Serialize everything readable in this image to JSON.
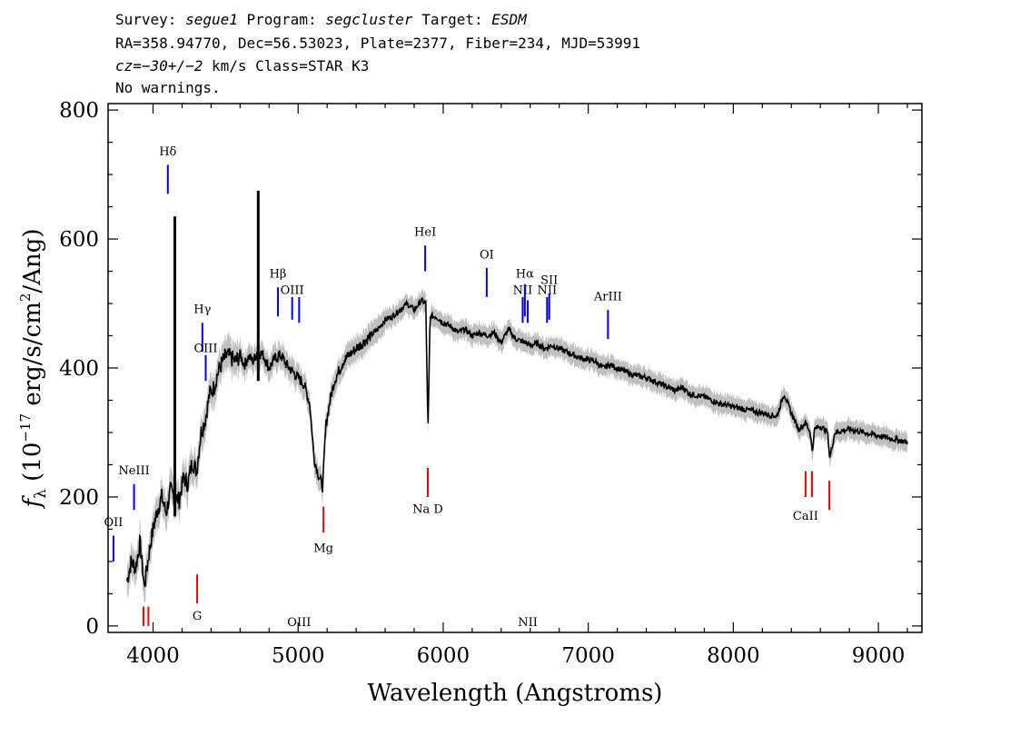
{
  "header": {
    "survey_key": "Survey:",
    "survey": "segue1",
    "program_key": "Program:",
    "program": "segcluster",
    "target_key": "Target:",
    "target": "ESDM",
    "line2": "RA=358.94770, Dec=56.53023, Plate=2377, Fiber=234, MJD=53991",
    "cz_key": "cz=",
    "cz_value": "−30+/−2",
    "cz_rest": " km/s Class=STAR K3",
    "line4": "No warnings."
  },
  "chart_data": {
    "type": "line",
    "title": "",
    "xlabel": "Wavelength (Angstroms)",
    "ylabel": "f_λ (10^-17 erg/s/cm^2/Ang)",
    "ylabel_parts": {
      "f": "f",
      "lambda": "λ",
      "pre": " (10",
      "exp": "−17",
      "mid": " erg/s/cm",
      "exp2": "2",
      "post": "/Ang)"
    },
    "xlim": [
      3690,
      9300
    ],
    "ylim": [
      -10,
      810
    ],
    "x_ticks": [
      4000,
      5000,
      6000,
      7000,
      8000,
      9000
    ],
    "x_tick_labels": [
      "4000",
      "5000",
      "6000",
      "7000",
      "8000",
      "9000"
    ],
    "y_ticks": [
      0,
      200,
      400,
      600,
      800
    ],
    "y_tick_labels": [
      "0",
      "200",
      "400",
      "600",
      "800"
    ],
    "series": [
      {
        "name": "flux",
        "color": "#000000",
        "x": [
          3820,
          3850,
          3880,
          3910,
          3940,
          3970,
          4000,
          4030,
          4060,
          4090,
          4120,
          4150,
          4180,
          4210,
          4240,
          4270,
          4300,
          4330,
          4360,
          4390,
          4420,
          4450,
          4480,
          4510,
          4540,
          4570,
          4600,
          4630,
          4660,
          4690,
          4720,
          4760,
          4800,
          4840,
          4880,
          4920,
          4960,
          5000,
          5040,
          5080,
          5110,
          5140,
          5170,
          5190,
          5220,
          5250,
          5280,
          5310,
          5350,
          5400,
          5450,
          5500,
          5550,
          5600,
          5650,
          5700,
          5750,
          5800,
          5850,
          5880,
          5895,
          5910,
          5950,
          6000,
          6050,
          6100,
          6150,
          6200,
          6250,
          6300,
          6350,
          6400,
          6450,
          6500,
          6560,
          6600,
          6650,
          6700,
          6750,
          6800,
          6850,
          6900,
          6950,
          7000,
          7050,
          7100,
          7150,
          7200,
          7250,
          7300,
          7400,
          7500,
          7600,
          7650,
          7700,
          7800,
          7900,
          8000,
          8100,
          8200,
          8300,
          8350,
          8400,
          8450,
          8500,
          8530,
          8545,
          8560,
          8600,
          8650,
          8665,
          8700,
          8800,
          8900,
          9000,
          9100,
          9200
        ],
        "values": [
          70,
          100,
          90,
          130,
          60,
          110,
          150,
          180,
          200,
          175,
          210,
          200,
          195,
          230,
          220,
          255,
          240,
          300,
          320,
          360,
          370,
          395,
          410,
          420,
          415,
          410,
          420,
          405,
          418,
          410,
          425,
          420,
          400,
          415,
          420,
          405,
          395,
          385,
          375,
          345,
          260,
          235,
          215,
          310,
          350,
          380,
          395,
          410,
          420,
          430,
          440,
          450,
          460,
          475,
          480,
          490,
          500,
          490,
          505,
          500,
          300,
          480,
          480,
          470,
          465,
          455,
          460,
          450,
          455,
          450,
          455,
          440,
          460,
          445,
          440,
          435,
          438,
          430,
          435,
          430,
          425,
          420,
          415,
          413,
          410,
          400,
          405,
          400,
          395,
          390,
          385,
          375,
          365,
          370,
          360,
          355,
          345,
          340,
          335,
          330,
          325,
          360,
          330,
          305,
          315,
          300,
          270,
          305,
          310,
          300,
          260,
          300,
          305,
          300,
          295,
          290,
          285
        ]
      },
      {
        "name": "error",
        "color": "#c0c0c0",
        "x": [],
        "values": []
      }
    ],
    "spikes": [
      {
        "x": 4150,
        "y0": 170,
        "y1": 635
      },
      {
        "x": 4725,
        "y0": 380,
        "y1": 675
      }
    ],
    "emission_lines": [
      {
        "label": "OII",
        "x": 3727,
        "y0": 100,
        "y1": 140,
        "label_y": 155
      },
      {
        "label": "NeIII",
        "x": 3869,
        "y0": 180,
        "y1": 220,
        "label_y": 235
      },
      {
        "label": "Hδ",
        "x": 4102,
        "y0": 670,
        "y1": 715,
        "label_y": 730
      },
      {
        "label": "Hγ",
        "x": 4340,
        "y0": 425,
        "y1": 470,
        "label_y": 485
      },
      {
        "label": "OIII",
        "x": 4363,
        "y0": 380,
        "y1": 420,
        "label_y": 425
      },
      {
        "label": "Hβ",
        "x": 4861,
        "y0": 480,
        "y1": 525,
        "label_y": 540
      },
      {
        "label": "OIII",
        "x": 4959,
        "y0": 475,
        "y1": 510,
        "label_y": 515
      },
      {
        "label": "OIII",
        "x": 5007,
        "y0": 470,
        "y1": 510,
        "label_y": 0
      },
      {
        "label": "HeI",
        "x": 5876,
        "y0": 550,
        "y1": 590,
        "label_y": 605
      },
      {
        "label": "OI",
        "x": 6300,
        "y0": 510,
        "y1": 555,
        "label_y": 570
      },
      {
        "label": "NII",
        "x": 6548,
        "y0": 470,
        "y1": 510,
        "label_y": 515
      },
      {
        "label": "Hα",
        "x": 6563,
        "y0": 480,
        "y1": 530,
        "label_y": 540
      },
      {
        "label": "NII",
        "x": 6583,
        "y0": 470,
        "y1": 505,
        "label_y": 0
      },
      {
        "label": "NII",
        "x": 6716,
        "y0": 470,
        "y1": 510,
        "label_y": 515
      },
      {
        "label": "SII",
        "x": 6731,
        "y0": 475,
        "y1": 515,
        "label_y": 530
      },
      {
        "label": "ArIII",
        "x": 7136,
        "y0": 445,
        "y1": 490,
        "label_y": 505
      }
    ],
    "absorption_lines": [
      {
        "label": "",
        "x": 3934,
        "y0": 0,
        "y1": 30,
        "label_y": 0
      },
      {
        "label": "",
        "x": 3968,
        "y0": 0,
        "y1": 30,
        "label_y": 0
      },
      {
        "label": "G",
        "x": 4304,
        "y0": 35,
        "y1": 80,
        "label_y": 10
      },
      {
        "label": "Mg",
        "x": 5175,
        "y0": 145,
        "y1": 185,
        "label_y": 115
      },
      {
        "label": "Na D",
        "x": 5894,
        "y0": 200,
        "y1": 245,
        "label_y": 175
      },
      {
        "label": "CaII",
        "x": 8498,
        "y0": 200,
        "y1": 240,
        "label_y": 165
      },
      {
        "label": "",
        "x": 8542,
        "y0": 200,
        "y1": 240,
        "label_y": 0
      },
      {
        "label": "",
        "x": 8662,
        "y0": 180,
        "y1": 225,
        "label_y": 0
      }
    ]
  },
  "colors": {
    "emission": "#0000ee",
    "absorption": "#ee0000",
    "error": "#c0c0c0",
    "flux": "#000000"
  }
}
